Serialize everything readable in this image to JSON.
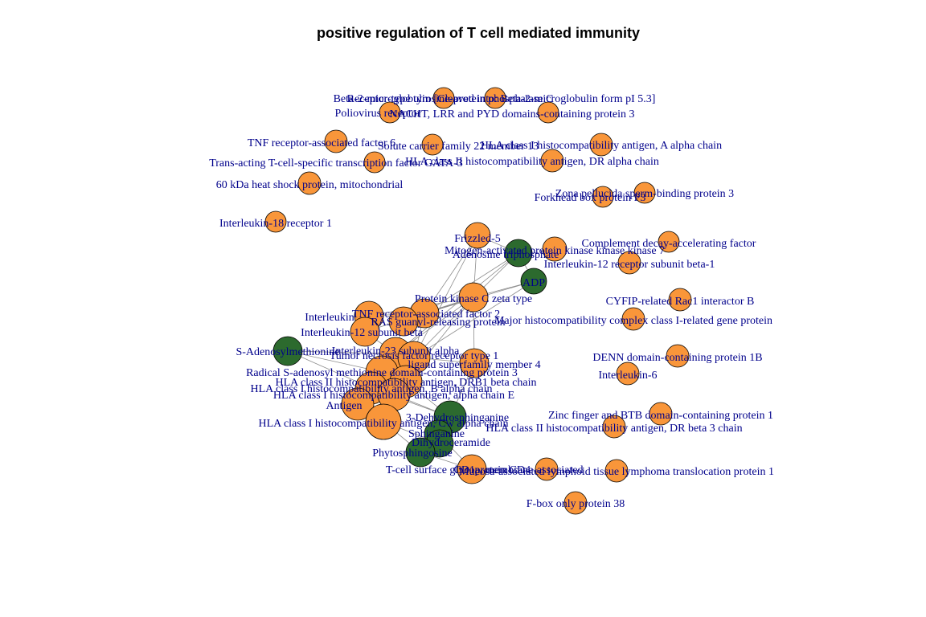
{
  "title": "positive regulation of T cell mediated immunity",
  "colors": {
    "protein": "#F9963A",
    "metabolite": "#2C6A2E",
    "label": "#00008B",
    "edge": "#8c8c8c"
  },
  "nodes": [
    {
      "id": "b2m",
      "label": "Beta-2-microglobulin [Cleaved into: Beta-2-microglobulin form pI 5.3]",
      "type": "protein"
    },
    {
      "id": "rtkphos",
      "label": "Receptor-type tyrosine-protein phosphatase C",
      "type": "protein"
    },
    {
      "id": "nlrp3",
      "label": "NACHT, LRR and PYD domains-containing protein 3",
      "type": "protein"
    },
    {
      "id": "pvr",
      "label": "Poliovirus receptor",
      "type": "protein"
    },
    {
      "id": "traf6",
      "label": "TNF receptor-associated factor 6",
      "type": "protein"
    },
    {
      "id": "slc22",
      "label": "Solute carrier family 22 member 13",
      "type": "protein"
    },
    {
      "id": "hlaa",
      "label": "HLA class I histocompatibility antigen, A alpha chain",
      "type": "protein"
    },
    {
      "id": "gata3",
      "label": "Trans-acting T-cell-specific transcription factor GATA-3",
      "type": "protein"
    },
    {
      "id": "hladra",
      "label": "HLA class II histocompatibility antigen, DR alpha chain",
      "type": "protein"
    },
    {
      "id": "hsp60",
      "label": "60 kDa heat shock protein, mitochondrial",
      "type": "protein"
    },
    {
      "id": "zp3",
      "label": "Zona pellucida sperm-binding protein 3",
      "type": "protein"
    },
    {
      "id": "foxp3",
      "label": "Forkhead box protein P3",
      "type": "protein"
    },
    {
      "id": "il18r",
      "label": "Interleukin-18 receptor 1",
      "type": "protein"
    },
    {
      "id": "fzd5",
      "label": "Frizzled-5",
      "type": "protein"
    },
    {
      "id": "atp",
      "label": "Adenosine triphosphate",
      "type": "metabolite"
    },
    {
      "id": "map3k7",
      "label": "Mitogen-activated protein kinase kinase kinase 7",
      "type": "protein"
    },
    {
      "id": "cd55",
      "label": "Complement decay-accelerating factor",
      "type": "protein"
    },
    {
      "id": "il12rb1",
      "label": "Interleukin-12 receptor subunit beta-1",
      "type": "protein"
    },
    {
      "id": "adp",
      "label": "ADP",
      "type": "metabolite"
    },
    {
      "id": "pkcz",
      "label": "Protein kinase C zeta type",
      "type": "protein"
    },
    {
      "id": "cyfip",
      "label": "CYFIP-related Rac1 interactor B",
      "type": "protein"
    },
    {
      "id": "traf2",
      "label": "TNF receptor-associated factor 2",
      "type": "protein"
    },
    {
      "id": "il_a",
      "label": "Interleukin",
      "type": "protein"
    },
    {
      "id": "ras",
      "label": "RAS guanyl-releasing protein",
      "type": "protein"
    },
    {
      "id": "mr1",
      "label": "Major histocompatibility complex class I-related gene protein",
      "type": "protein"
    },
    {
      "id": "il12b",
      "label": "Interleukin-12 subunit beta",
      "type": "protein"
    },
    {
      "id": "dennd1b",
      "label": "DENN domain-containing protein 1B",
      "type": "protein"
    },
    {
      "id": "sam",
      "label": "S-Adenosylmethionine",
      "type": "metabolite"
    },
    {
      "id": "il23a",
      "label": "Interleukin-23 subunit alpha",
      "type": "protein"
    },
    {
      "id": "il6",
      "label": "Interleukin-6",
      "type": "protein"
    },
    {
      "id": "tnfr1",
      "label": "Tumor necrosis factor receptor type 1",
      "type": "protein"
    },
    {
      "id": "tnfsf4",
      "label": "ligand superfamily member 4",
      "type": "protein"
    },
    {
      "id": "rsad",
      "label": "Radical S-adenosyl methionine domain-containing protein 3",
      "type": "protein"
    },
    {
      "id": "hladrb1",
      "label": "HLA class II histocompatibility antigen, DRB1 beta chain",
      "type": "protein"
    },
    {
      "id": "hlab",
      "label": "HLA class I histocompatibility antigen, B alpha chain",
      "type": "protein"
    },
    {
      "id": "hlae",
      "label": "HLA class I histocompatibility antigen, alpha chain E",
      "type": "protein"
    },
    {
      "id": "zbtb",
      "label": "Zinc finger and BTB domain-containing protein 1",
      "type": "protein"
    },
    {
      "id": "ag",
      "label": "Antigen",
      "type": "protein"
    },
    {
      "id": "dhsph",
      "label": "3-Dehydrosphinganine",
      "type": "metabolite"
    },
    {
      "id": "hlac",
      "label": "HLA class I histocompatibility antigen, Cw alpha chain",
      "type": "protein"
    },
    {
      "id": "hladrb3",
      "label": "HLA class II histocompatibility antigen, DR beta 3 chain",
      "type": "protein"
    },
    {
      "id": "sphinganine",
      "label": "Sphinganine",
      "type": "metabolite"
    },
    {
      "id": "dhcer",
      "label": "Dihydroceramide",
      "type": "metabolite"
    },
    {
      "id": "phyto",
      "label": "Phytosphingosine",
      "type": "metabolite"
    },
    {
      "id": "cd4",
      "label": "T-cell surface glycoprotein CD4",
      "type": "protein"
    },
    {
      "id": "muc",
      "label": "Mucosa-associated lymphoid tissue lymphoma translocation protein 1",
      "type": "protein"
    },
    {
      "id": "card",
      "label": "CD1a, membrane-associated",
      "type": "protein"
    },
    {
      "id": "fbxo38",
      "label": "F-box only protein 38",
      "type": "protein"
    }
  ]
}
